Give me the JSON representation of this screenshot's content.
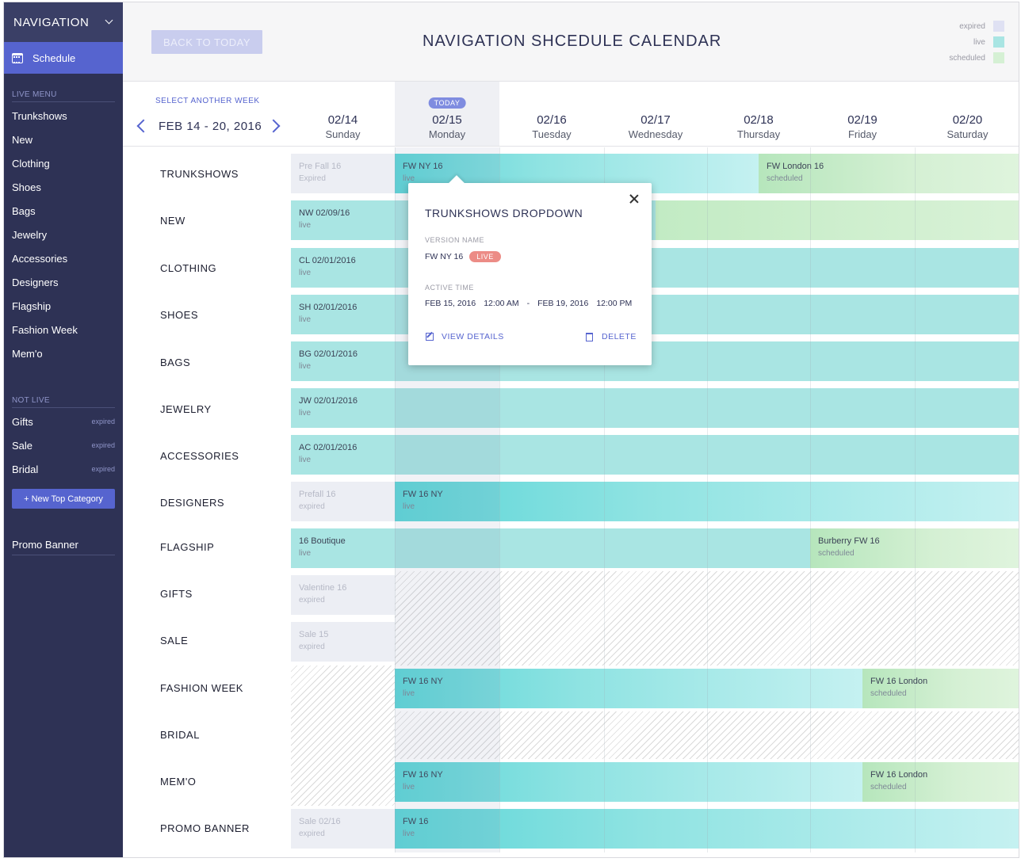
{
  "sidebar": {
    "title": "NAVIGATION",
    "active_item": "Schedule",
    "live_menu_label": "LIVE MENU",
    "live_items": [
      "Trunkshows",
      "New",
      "Clothing",
      "Shoes",
      "Bags",
      "Jewelry",
      "Accessories",
      "Designers",
      "Flagship",
      "Fashion Week",
      "Mem'o"
    ],
    "not_live_label": "NOT LIVE",
    "not_live_items": [
      {
        "label": "Gifts",
        "tag": "expired"
      },
      {
        "label": "Sale",
        "tag": "expired"
      },
      {
        "label": "Bridal",
        "tag": "expired"
      }
    ],
    "new_category_button": "+ New Top Category",
    "promo_banner": "Promo Banner"
  },
  "header": {
    "back_button": "BACK TO TODAY",
    "title": "NAVIGATION SHCEDULE CALENDAR",
    "legend": [
      {
        "label": "expired",
        "color": "#dfe1f3"
      },
      {
        "label": "live",
        "color": "#a9e5e3"
      },
      {
        "label": "scheduled",
        "color": "#d5f0d4"
      }
    ]
  },
  "week": {
    "select_label": "SELECT ANOTHER WEEK",
    "range": "FEB 14 - 20, 2016"
  },
  "days": [
    {
      "date": "02/14",
      "name": "Sunday"
    },
    {
      "date": "02/15",
      "name": "Monday",
      "today": "TODAY"
    },
    {
      "date": "02/16",
      "name": "Tuesday"
    },
    {
      "date": "02/17",
      "name": "Wednesday"
    },
    {
      "date": "02/18",
      "name": "Thursday"
    },
    {
      "date": "02/19",
      "name": "Friday"
    },
    {
      "date": "02/20",
      "name": "Saturday"
    }
  ],
  "rows": [
    {
      "label": "TRUNKSHOWS",
      "bars": [
        {
          "title": "Pre Fall 16",
          "status": "Expired",
          "type": "expired"
        },
        {
          "title": "FW NY 16",
          "status": "live",
          "type": "live"
        },
        {
          "title": "FW London 16",
          "status": "scheduled",
          "type": "scheduled"
        }
      ]
    },
    {
      "label": "NEW",
      "bars": [
        {
          "title": "NW 02/09/16",
          "status": "live",
          "type": "live"
        }
      ]
    },
    {
      "label": "CLOTHING",
      "bars": [
        {
          "title": "CL 02/01/2016",
          "status": "live",
          "type": "live"
        }
      ]
    },
    {
      "label": "SHOES",
      "bars": [
        {
          "title": "SH 02/01/2016",
          "status": "live",
          "type": "live"
        }
      ]
    },
    {
      "label": "BAGS",
      "bars": [
        {
          "title": "BG 02/01/2016",
          "status": "live",
          "type": "live"
        }
      ]
    },
    {
      "label": "JEWELRY",
      "bars": [
        {
          "title": "JW 02/01/2016",
          "status": "live",
          "type": "live"
        }
      ]
    },
    {
      "label": "ACCESSORIES",
      "bars": [
        {
          "title": "AC 02/01/2016",
          "status": "live",
          "type": "live"
        }
      ]
    },
    {
      "label": "DESIGNERS",
      "bars": [
        {
          "title": "Prefall 16",
          "status": "expired",
          "type": "expired"
        },
        {
          "title": "FW 16 NY",
          "status": "live",
          "type": "live"
        }
      ]
    },
    {
      "label": "FLAGSHIP",
      "bars": [
        {
          "title": "16 Boutique",
          "status": "live",
          "type": "live"
        },
        {
          "title": "Burberry FW 16",
          "status": "scheduled",
          "type": "scheduled"
        }
      ]
    },
    {
      "label": "GIFTS",
      "bars": [
        {
          "title": "Valentine 16",
          "status": "expired",
          "type": "expired"
        }
      ]
    },
    {
      "label": "SALE",
      "bars": [
        {
          "title": "Sale 15",
          "status": "expired",
          "type": "expired"
        }
      ]
    },
    {
      "label": "FASHION WEEK",
      "bars": [
        {
          "title": "FW 16 NY",
          "status": "live",
          "type": "live"
        },
        {
          "title": "FW 16 London",
          "status": "scheduled",
          "type": "scheduled"
        }
      ]
    },
    {
      "label": "BRIDAL",
      "bars": []
    },
    {
      "label": "MEM'O",
      "bars": [
        {
          "title": "FW 16 NY",
          "status": "live",
          "type": "live"
        },
        {
          "title": "FW 16 London",
          "status": "scheduled",
          "type": "scheduled"
        }
      ]
    },
    {
      "label": "PROMO BANNER",
      "bars": [
        {
          "title": "Sale 02/16",
          "status": "expired",
          "type": "expired"
        },
        {
          "title": "FW 16",
          "status": "live",
          "type": "live"
        }
      ]
    }
  ],
  "popup": {
    "title": "TRUNKSHOWS DROPDOWN",
    "version_label": "VERSION NAME",
    "version_name": "FW NY 16",
    "status_badge": "LIVE",
    "active_label": "ACTIVE TIME",
    "start_date": "FEB 15, 2016",
    "start_time": "12:00 AM",
    "separator": "-",
    "end_date": "FEB 19, 2016",
    "end_time": "12:00 PM",
    "view_details": "VIEW DETAILS",
    "delete": "DELETE"
  }
}
